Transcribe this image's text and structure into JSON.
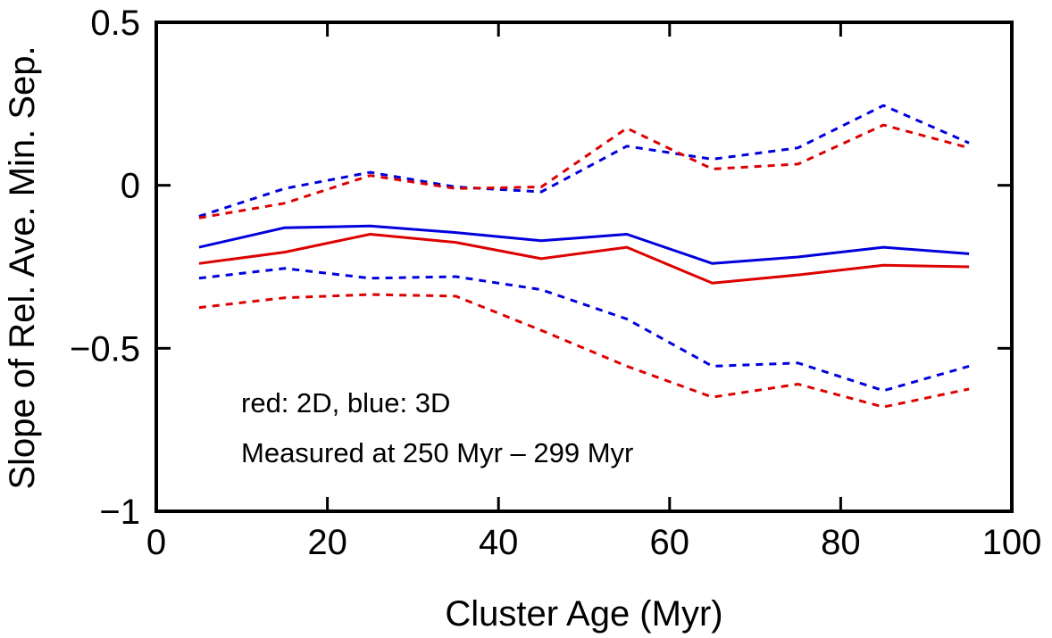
{
  "chart_data": {
    "type": "line",
    "title": "",
    "xlabel": "Cluster Age (Myr)",
    "ylabel": "Slope of Rel. Ave. Min. Sep.",
    "xlim": [
      0,
      100
    ],
    "ylim": [
      -1,
      0.5
    ],
    "x_ticks": [
      0,
      20,
      40,
      60,
      80,
      100
    ],
    "y_ticks": [
      -1,
      -0.5,
      0,
      0.5
    ],
    "x_tick_labels": [
      "0",
      "20",
      "40",
      "60",
      "80",
      "100"
    ],
    "y_tick_labels": [
      "−1",
      "−0.5",
      "0",
      "0.5"
    ],
    "grid": false,
    "x": [
      5,
      15,
      25,
      35,
      45,
      55,
      65,
      75,
      85,
      95
    ],
    "series": [
      {
        "name": "3D mean",
        "color": "#0000dd",
        "style": "solid",
        "values": [
          -0.19,
          -0.13,
          -0.125,
          -0.145,
          -0.17,
          -0.15,
          -0.24,
          -0.22,
          -0.19,
          -0.21
        ]
      },
      {
        "name": "2D mean",
        "color": "#dd0000",
        "style": "solid",
        "values": [
          -0.24,
          -0.205,
          -0.15,
          -0.175,
          -0.225,
          -0.19,
          -0.3,
          -0.275,
          -0.245,
          -0.25
        ]
      },
      {
        "name": "3D upper",
        "color": "#0000dd",
        "style": "dashed",
        "values": [
          -0.095,
          -0.01,
          0.04,
          -0.005,
          -0.02,
          0.12,
          0.08,
          0.115,
          0.245,
          0.13
        ]
      },
      {
        "name": "2D upper",
        "color": "#dd0000",
        "style": "dashed",
        "values": [
          -0.1,
          -0.055,
          0.03,
          -0.01,
          -0.005,
          0.175,
          0.05,
          0.065,
          0.185,
          0.115
        ]
      },
      {
        "name": "3D lower",
        "color": "#0000dd",
        "style": "dashed",
        "values": [
          -0.285,
          -0.255,
          -0.285,
          -0.28,
          -0.32,
          -0.41,
          -0.555,
          -0.545,
          -0.63,
          -0.555
        ]
      },
      {
        "name": "2D lower",
        "color": "#dd0000",
        "style": "dashed",
        "values": [
          -0.375,
          -0.345,
          -0.335,
          -0.34,
          -0.445,
          -0.555,
          -0.65,
          -0.61,
          -0.68,
          -0.625
        ]
      }
    ],
    "annotations": [
      "red: 2D, blue: 3D",
      "Measured at 250 Myr – 299 Myr"
    ]
  }
}
